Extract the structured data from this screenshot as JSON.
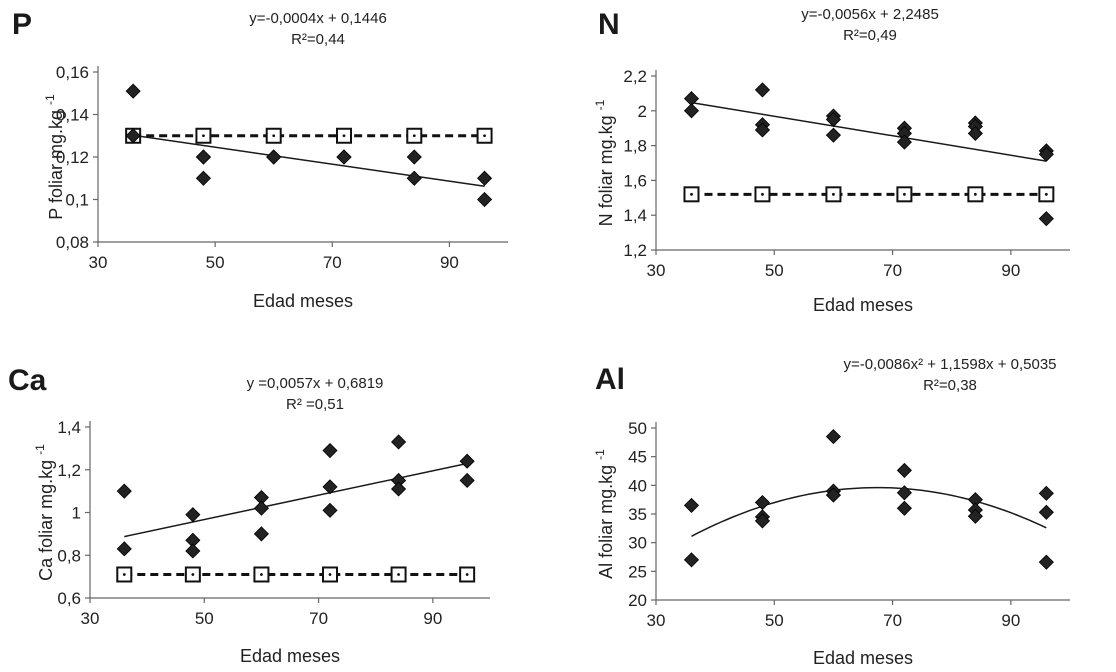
{
  "chart_data": [
    {
      "id": "P",
      "type": "scatter",
      "panel_label": "P",
      "equation": "y=-0,0004x + 0,1446",
      "r2": "R²=0,44",
      "xlabel": "Edad meses",
      "ylabel": "P   foliar mg.kg -1",
      "xlim": [
        30,
        100
      ],
      "ylim": [
        0.08,
        0.16
      ],
      "xticks": [
        30,
        50,
        70,
        90
      ],
      "xtick_labels": [
        "30",
        "50",
        "70",
        "90"
      ],
      "yticks": [
        0.08,
        0.1,
        0.12,
        0.14,
        0.16
      ],
      "ytick_labels": [
        "0,08",
        "0,1",
        "0,12",
        "0,14",
        "0,16"
      ],
      "observed": {
        "x": [
          36,
          36,
          48,
          48,
          48,
          60,
          60,
          72,
          72,
          84,
          84,
          96,
          96
        ],
        "y": [
          0.151,
          0.13,
          0.12,
          0.12,
          0.11,
          0.12,
          0.12,
          0.12,
          0.12,
          0.12,
          0.11,
          0.11,
          0.1
        ]
      },
      "trend": {
        "kind": "linear",
        "coef": [
          0.1446,
          -0.0004
        ],
        "x_range": [
          36,
          96
        ]
      },
      "reference": {
        "x": [
          36,
          48,
          60,
          72,
          84,
          96
        ],
        "y": [
          0.13,
          0.13,
          0.13,
          0.13,
          0.13,
          0.13
        ]
      }
    },
    {
      "id": "N",
      "type": "scatter",
      "panel_label": "N",
      "equation": "y=-0,0056x + 2,2485",
      "r2": "R²=0,49",
      "xlabel": "Edad meses",
      "ylabel": "N   foliar mg.kg -1",
      "xlim": [
        30,
        100
      ],
      "ylim": [
        1.2,
        2.2
      ],
      "xticks": [
        30,
        50,
        70,
        90
      ],
      "xtick_labels": [
        "30",
        "50",
        "70",
        "90"
      ],
      "yticks": [
        1.2,
        1.4,
        1.6,
        1.8,
        2.0,
        2.2
      ],
      "ytick_labels": [
        "1,2",
        "1,4",
        "1,6",
        "1,8",
        "2",
        "2,2"
      ],
      "observed": {
        "x": [
          36,
          36,
          48,
          48,
          48,
          60,
          60,
          60,
          72,
          72,
          72,
          84,
          84,
          84,
          96,
          96,
          96
        ],
        "y": [
          2.07,
          2.0,
          2.12,
          1.92,
          1.89,
          1.97,
          1.95,
          1.86,
          1.9,
          1.87,
          1.82,
          1.93,
          1.91,
          1.87,
          1.77,
          1.75,
          1.38
        ]
      },
      "trend": {
        "kind": "linear",
        "coef": [
          2.2485,
          -0.0056
        ],
        "x_range": [
          36,
          96
        ]
      },
      "reference": {
        "x": [
          36,
          48,
          60,
          72,
          84,
          96
        ],
        "y": [
          1.52,
          1.52,
          1.52,
          1.52,
          1.52,
          1.52
        ]
      }
    },
    {
      "id": "Ca",
      "type": "scatter",
      "panel_label": "Ca",
      "equation": "y =0,0057x + 0,6819",
      "r2": "R² =0,51",
      "xlabel": "Edad meses",
      "ylabel": "Ca   foliar mg.kg -1",
      "xlim": [
        30,
        100
      ],
      "ylim": [
        0.6,
        1.4
      ],
      "xticks": [
        30,
        50,
        70,
        90
      ],
      "xtick_labels": [
        "30",
        "50",
        "70",
        "90"
      ],
      "yticks": [
        0.6,
        0.8,
        1.0,
        1.2,
        1.4
      ],
      "ytick_labels": [
        "0,6",
        "0,8",
        "1",
        "1,2",
        "1,4"
      ],
      "observed": {
        "x": [
          36,
          36,
          48,
          48,
          48,
          60,
          60,
          60,
          72,
          72,
          72,
          84,
          84,
          84,
          96,
          96
        ],
        "y": [
          1.1,
          0.83,
          0.99,
          0.87,
          0.82,
          1.07,
          1.02,
          0.9,
          1.29,
          1.12,
          1.01,
          1.33,
          1.15,
          1.11,
          1.24,
          1.15
        ]
      },
      "trend": {
        "kind": "linear",
        "coef": [
          0.6819,
          0.0057
        ],
        "x_range": [
          36,
          96
        ]
      },
      "reference": {
        "x": [
          36,
          48,
          60,
          72,
          84,
          96
        ],
        "y": [
          0.71,
          0.71,
          0.71,
          0.71,
          0.71,
          0.71
        ]
      }
    },
    {
      "id": "Al",
      "type": "scatter",
      "panel_label": "Al",
      "equation": "y=-0,0086x² + 1,1598x + 0,5035",
      "r2": "R²=0,38",
      "xlabel": "Edad meses",
      "ylabel": "Al   foliar mg.kg -1",
      "xlim": [
        30,
        100
      ],
      "ylim": [
        20,
        50
      ],
      "xticks": [
        30,
        50,
        70,
        90
      ],
      "xtick_labels": [
        "30",
        "50",
        "70",
        "90"
      ],
      "yticks": [
        20,
        25,
        30,
        35,
        40,
        45,
        50
      ],
      "ytick_labels": [
        "20",
        "25",
        "30",
        "35",
        "40",
        "45",
        "50"
      ],
      "observed": {
        "x": [
          36,
          36,
          48,
          48,
          48,
          60,
          60,
          60,
          72,
          72,
          72,
          84,
          84,
          84,
          96,
          96,
          96
        ],
        "y": [
          36.5,
          27,
          37,
          34.5,
          33.8,
          48.5,
          39,
          38.3,
          42.6,
          38.7,
          36,
          37.5,
          35.7,
          34.6,
          38.6,
          35.3,
          26.6
        ]
      },
      "trend": {
        "kind": "poly2",
        "coef": [
          0.5035,
          1.1598,
          -0.0086
        ],
        "x_range": [
          36,
          96
        ]
      },
      "reference": null
    }
  ]
}
